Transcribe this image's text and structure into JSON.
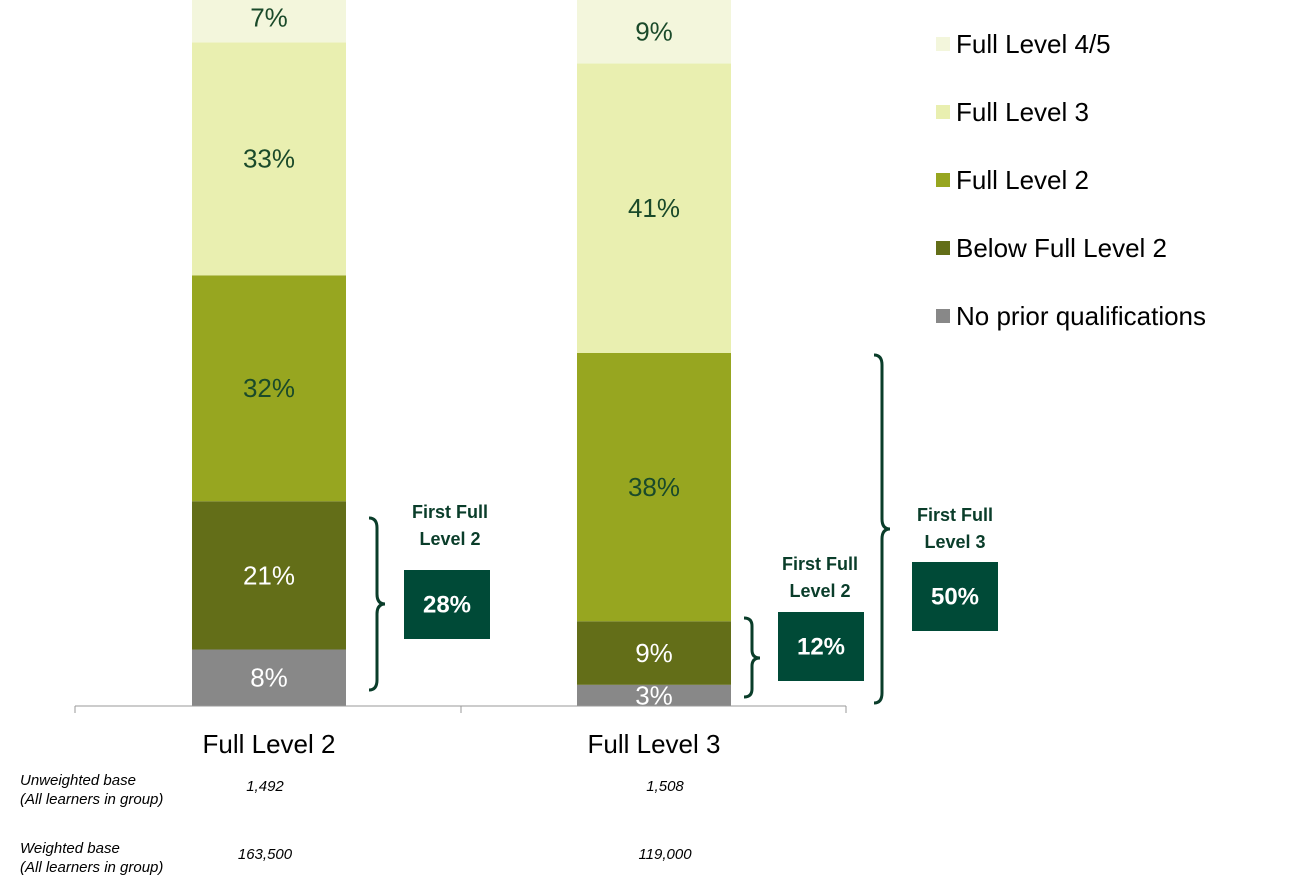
{
  "chart_data": {
    "type": "stacked_bar",
    "categories": [
      "Full Level 2",
      "Full Level 3"
    ],
    "ylim": [
      0,
      100
    ],
    "series": [
      {
        "name": "No prior qualifications",
        "color": "#888888",
        "label_color": "#ffffff",
        "values": [
          8,
          3
        ],
        "value_labels": [
          "8%",
          "3%"
        ]
      },
      {
        "name": "Below Full Level 2",
        "color": "#636e18",
        "label_color": "#ffffff",
        "values": [
          21,
          9
        ],
        "value_labels": [
          "21%",
          "9%"
        ]
      },
      {
        "name": "Full Level 2",
        "color": "#97a620",
        "label_color": "#1a4a2a",
        "values": [
          32,
          38
        ],
        "value_labels": [
          "32%",
          "38%"
        ]
      },
      {
        "name": "Full Level 3",
        "color": "#e9efb0",
        "label_color": "#1a4a2a",
        "values": [
          33,
          41
        ],
        "value_labels": [
          "33%",
          "41%"
        ]
      },
      {
        "name": "Full Level 4/5",
        "color": "#f3f6dc",
        "label_color": "#1a4a2a",
        "values": [
          7,
          9
        ],
        "value_labels": [
          "7%",
          "9%"
        ]
      }
    ],
    "annotations": [
      {
        "lines": [
          "First Full",
          "Level 2"
        ],
        "label": "28%"
      },
      {
        "lines": [
          "First Full",
          "Level 2"
        ],
        "label": "12%"
      },
      {
        "lines": [
          "First Full",
          "Level 3"
        ],
        "label": "50%"
      }
    ],
    "base_rows": [
      {
        "lines": [
          "Unweighted base",
          "(All learners  in group)"
        ],
        "values": [
          "1,492",
          "1,508"
        ]
      },
      {
        "lines": [
          "Weighted base",
          "(All learners  in group)"
        ],
        "values": [
          "163,500",
          "119,000"
        ]
      }
    ]
  }
}
